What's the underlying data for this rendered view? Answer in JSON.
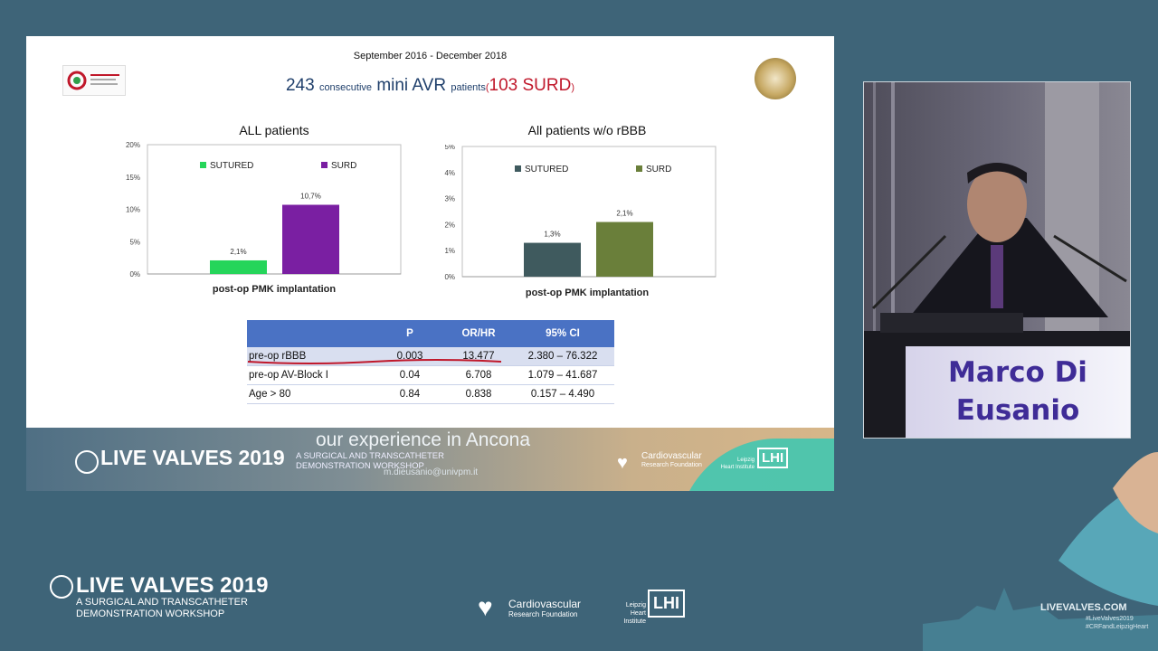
{
  "slide": {
    "period": "September 2016 - December 2018",
    "headline": {
      "n": "243",
      "w1": "consecutive",
      "mid": "mini AVR",
      "w2": "patients",
      "open": "(",
      "surd": "103 SURD",
      "close": ")"
    },
    "footer_experience": "our experience in Ancona",
    "footer_brand": "LIVE VALVES 2019",
    "footer_subtitle_1": "A SURGICAL AND TRANSCATHETER",
    "footer_subtitle_2": "DEMONSTRATION WORKSHOP",
    "footer_email": "m.dieusanio@univpm.it",
    "cv_1": "Cardiovascular",
    "cv_2": "Research Foundation",
    "lhi_1": "Leipzig",
    "lhi_2": "Heart Institute",
    "lhi_abbr": "LHI"
  },
  "chart_data": [
    {
      "type": "bar",
      "title": "ALL patients",
      "xlabel": "post-op PMK implantation",
      "yticks": [
        "0%",
        "5%",
        "10%",
        "15%",
        "20%"
      ],
      "ylim": [
        0,
        20
      ],
      "categories": [
        "SUTURED",
        "SURD"
      ],
      "values": [
        2.1,
        10.7
      ],
      "labels": [
        "2,1%",
        "10,7%"
      ],
      "colors": [
        "#25d55a",
        "#7a1fa2"
      ],
      "legend": "top"
    },
    {
      "type": "bar",
      "title": "All patients w/o rBBB",
      "xlabel": "post-op PMK implantation",
      "yticks": [
        "0%",
        "1%",
        "2%",
        "3%",
        "4%",
        "5%"
      ],
      "ylim": [
        0,
        5
      ],
      "categories": [
        "SUTURED",
        "SURD"
      ],
      "values": [
        1.3,
        2.1
      ],
      "labels": [
        "1,3%",
        "2,1%"
      ],
      "colors": [
        "#3f5a5e",
        "#6a7f3a"
      ],
      "legend": "top"
    }
  ],
  "table": {
    "headers": [
      "",
      "P",
      "OR/HR",
      "95% CI"
    ],
    "rows": [
      [
        "pre-op rBBB",
        "0.003",
        "13.477",
        "2.380 – 76.322"
      ],
      [
        "pre-op AV-Block I",
        "0.04",
        "6.708",
        "1.079 – 41.687"
      ],
      [
        "Age > 80",
        "0.84",
        "0.838",
        "0.157 – 4.490"
      ]
    ]
  },
  "speaker": {
    "name_1": "Marco Di",
    "name_2": "Eusanio"
  },
  "bottom": {
    "brand": "LIVE VALVES 2019",
    "sub_1": "A SURGICAL AND TRANSCATHETER",
    "sub_2": "DEMONSTRATION WORKSHOP",
    "cv_1": "Cardiovascular",
    "cv_2": "Research Foundation",
    "lhi_1": "Leipzig",
    "lhi_2": "Heart Institute",
    "lhi_abbr": "LHI",
    "url": "LIVEVALVES.COM",
    "tag_1": "#LiveValves2019",
    "tag_2": "#CRFandLeipzigHeart"
  },
  "colors": {
    "background": "#3e6478",
    "table_header": "#4a72c4",
    "headline": "#1f3f6b",
    "surd_red": "#c0182b"
  }
}
